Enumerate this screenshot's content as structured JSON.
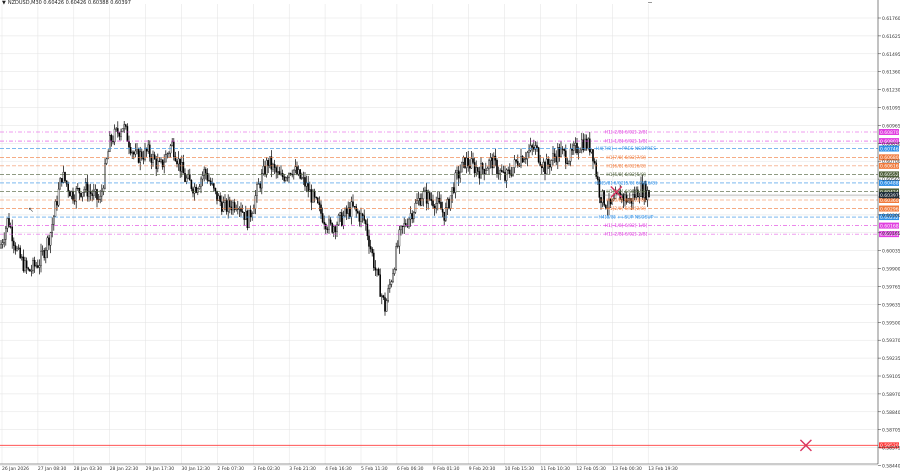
{
  "header": {
    "symbol_line": "NZDUSD,M30  0.60426 0.60426 0.60388 0.60397",
    "arrow_glyph": "▼"
  },
  "colors": {
    "background": "#ffffff",
    "grid": "#e2e2e2",
    "candle": "#000000",
    "magenta": "#e03fe0",
    "blue": "#2f8fe6",
    "orange": "#f07a3c",
    "olive": "#4d5f3a",
    "red_line": "#ff3b3b",
    "cross": "#d8345f"
  },
  "price_axis": {
    "labels": [
      "0.61760",
      "0.61625",
      "0.61495",
      "0.61360",
      "0.61230",
      "0.61095",
      "0.60965",
      "0.60830",
      "0.60700",
      "0.60565",
      "0.60435",
      "0.60300",
      "0.60165",
      "0.60035",
      "0.59900",
      "0.59765",
      "0.59635",
      "0.59500",
      "0.59370",
      "0.59235",
      "0.59105",
      "0.58970",
      "0.58840",
      "0.58705",
      "0.58575",
      "0.58440"
    ]
  },
  "time_axis": {
    "labels": [
      "26 Jan 2026",
      "27 Jan 08:30",
      "28 Jan 03:30",
      "28 Jan 22:30",
      "29 Jan 17:30",
      "30 Jan 12:30",
      "2 Feb 07:30",
      "3 Feb 02:30",
      "3 Feb 21:30",
      "4 Feb 16:30",
      "5 Feb 11:30",
      "6 Feb 06:30",
      "9 Feb 01:30",
      "9 Feb 20:30",
      "10 Feb 15:30",
      "11 Feb 10:30",
      "12 Feb 05:30",
      "13 Feb 00:30",
      "13 Feb 19:30"
    ]
  },
  "levels": [
    {
      "label": "H1[-2/8] 6/02[-2/8]",
      "badge": "0.60870",
      "price": 0.6087,
      "color": "#e03fe0",
      "dash": "4,2,1,2"
    },
    {
      "label": "H1[-1/8] 6/02[-1/8]",
      "badge": "0.60802",
      "price": 0.60802,
      "color": "#e03fe0",
      "dash": "4,2,1,2"
    },
    {
      "label": "H4[7/8] ++PRES NSOPRES",
      "badge": "0.60746",
      "price": 0.60746,
      "color": "#2f8fe6",
      "dash": "4,2"
    },
    {
      "label": "H1[7/8] 6/02[7/8]",
      "badge": "0.60680",
      "price": 0.6068,
      "color": "#f07a3c",
      "dash": "4,2"
    },
    {
      "label": "H1[6/8] 6/02[6/8]",
      "badge": "0.60616",
      "price": 0.60616,
      "color": "#f07a3c",
      "dash": "4,2"
    },
    {
      "label": "H1[5/8] 6/02[5/8]",
      "badge": "0.60552",
      "price": 0.60552,
      "color": "#4d5f3a",
      "dash": "4,2"
    },
    {
      "label": "H4[5/8] 6/02[5/8] 6/02[6/8]",
      "badge": "0.60488",
      "price": 0.60488,
      "color": "#2f8fe6",
      "dash": "4,2"
    },
    {
      "label": "H1[4/8] 6/02[4/8]",
      "badge": "0.60424",
      "price": 0.60424,
      "color": "#4d5f3a",
      "dash": "4,2"
    },
    {
      "label": "H1[3/8] 6/02[3/8]",
      "badge": "0.60360",
      "price": 0.6036,
      "color": "#f07a3c",
      "dash": "4,2"
    },
    {
      "label": "H1[2/8] 6/02[2/8]",
      "badge": "0.60296",
      "price": 0.60296,
      "color": "#f07a3c",
      "dash": "4,2"
    },
    {
      "label": "H4[8/8] ++SUP NSOSUP",
      "badge": "0.60232",
      "price": 0.60232,
      "color": "#2f8fe6",
      "dash": "4,2"
    },
    {
      "label": "H1[-1/8] 6/02[-1/8]",
      "badge": "0.60168",
      "price": 0.60168,
      "color": "#e03fe0",
      "dash": "4,2,1,2"
    },
    {
      "label": "H1[-2/8] 6/02[-2/8]",
      "badge": "0.60104",
      "price": 0.60104,
      "color": "#e03fe0",
      "dash": "4,2,1,2"
    }
  ],
  "current_price": {
    "badge": "0.60397",
    "price": 0.60397
  },
  "red_line": {
    "badge": "0.58520",
    "price": 0.5852
  },
  "markers": [
    {
      "type": "cross",
      "price": 0.6042,
      "time_index": 0.833
    },
    {
      "type": "cross",
      "price": 0.5852,
      "time_index": 1.09
    }
  ],
  "cursor": {
    "glyph": "↖"
  }
}
